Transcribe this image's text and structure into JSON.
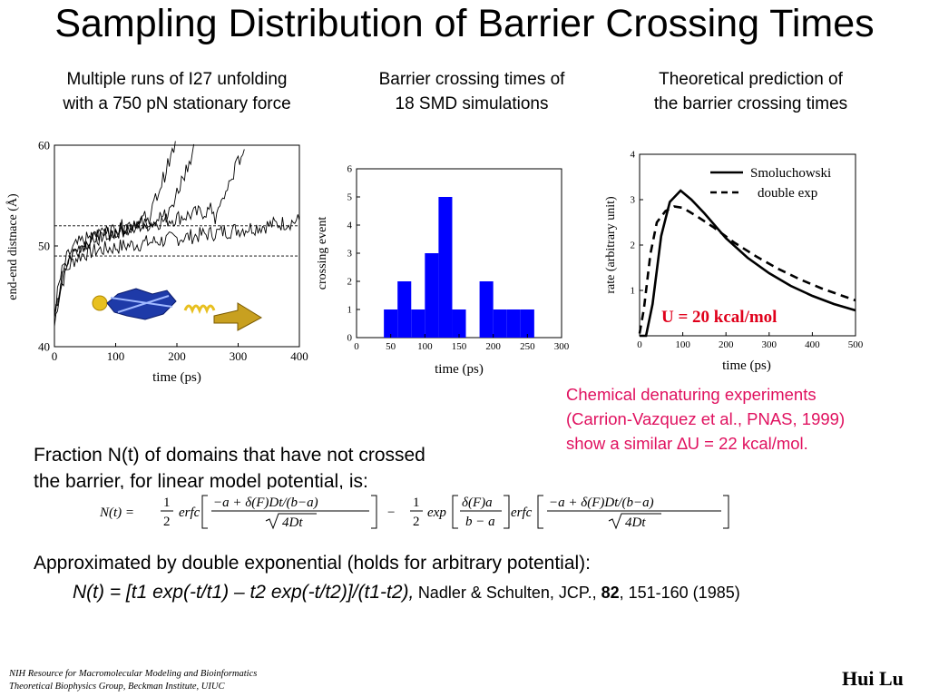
{
  "slide": {
    "title": "Sampling Distribution of Barrier Crossing Times",
    "captions": [
      [
        "Multiple runs of I27 unfolding",
        "with a 750 pN stationary force"
      ],
      [
        "Barrier crossing times of",
        "18 SMD simulations"
      ],
      [
        "Theoretical prediction of",
        "the barrier crossing times"
      ]
    ],
    "note_lines": [
      "Chemical denaturing  experiments",
      "(Carrion-Vazquez et al., PNAS, 1999)",
      "show a similar ∆U = 22 kcal/mol."
    ],
    "fraction_lines": [
      "Fraction N(t) of domains that have not crossed",
      "the barrier, for linear model potential, is:"
    ],
    "approx_text": "Approximated by double exponential (holds for arbitrary potential):",
    "formula": "N(t) = [t1 exp(-t/t1) – t2 exp(-t/t2)]/(t1-t2),",
    "reference": {
      "authors": "Nadler & Schulten, JCP., ",
      "volume": "82",
      "rest": ", 151-160 (1985)"
    },
    "footer_lines": [
      "NIH Resource for Macromolecular Modeling and Bioinformatics",
      "Theoretical Biophysics Group, Beckman Institute, UIUC"
    ],
    "author": "Hui Lu"
  },
  "chart_data": [
    {
      "type": "line",
      "title": "",
      "xlabel": "time (ps)",
      "ylabel": "end-end distnace (Å)",
      "xlim": [
        0,
        400
      ],
      "ylim": [
        40,
        60
      ],
      "xticks": [
        0,
        100,
        200,
        300,
        400
      ],
      "yticks": [
        40,
        50,
        60
      ],
      "hlines": [
        52,
        49
      ]
    },
    {
      "type": "bar",
      "title": "",
      "xlabel": "time (ps)",
      "ylabel": "crossing event",
      "categories": [
        50,
        70,
        90,
        110,
        130,
        150,
        170,
        190,
        210,
        230,
        250
      ],
      "values": [
        1,
        2,
        1,
        3,
        5,
        1,
        0,
        2,
        1,
        1,
        1
      ],
      "xlim": [
        0,
        300
      ],
      "ylim": [
        0,
        6
      ],
      "color": "#0000ff"
    },
    {
      "type": "line",
      "title": "",
      "xlabel": "time (ps)",
      "ylabel": "rate (arbitrary unit)",
      "xlim": [
        0,
        500
      ],
      "ylim": [
        0,
        4
      ],
      "series": [
        {
          "name": "Smoluchowski",
          "x": [
            0,
            15,
            30,
            50,
            70,
            95,
            120,
            150,
            200,
            250,
            300,
            350,
            400,
            450,
            500
          ],
          "y": [
            0,
            0,
            0.7,
            2.2,
            2.95,
            3.2,
            3.0,
            2.7,
            2.15,
            1.72,
            1.38,
            1.1,
            0.88,
            0.7,
            0.56
          ]
        },
        {
          "name": "double exp",
          "x": [
            0,
            10,
            25,
            40,
            60,
            80,
            100,
            130,
            170,
            220,
            270,
            320,
            370,
            420,
            470,
            500
          ],
          "y": [
            0.05,
            0.6,
            1.8,
            2.5,
            2.75,
            2.85,
            2.82,
            2.65,
            2.4,
            2.05,
            1.75,
            1.48,
            1.25,
            1.05,
            0.88,
            0.78
          ]
        }
      ],
      "annotation": "U = 20 kcal/mol"
    }
  ]
}
